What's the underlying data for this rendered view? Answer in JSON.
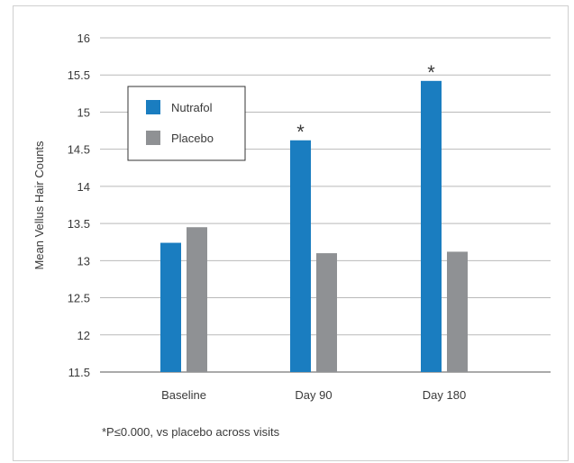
{
  "chart_data": {
    "type": "bar",
    "title": "",
    "xlabel": "",
    "ylabel": "Mean Vellus Hair Counts",
    "ylim": [
      11.5,
      16
    ],
    "yticks": [
      "11.5",
      "12",
      "12.5",
      "13",
      "13.5",
      "14",
      "14.5",
      "15",
      "15.5",
      "16"
    ],
    "grid": true,
    "legend_position": "top-left",
    "categories": [
      "Baseline",
      "Day  90",
      "Day  180"
    ],
    "series": [
      {
        "name": "Nutrafol",
        "color": "#1a7dc0",
        "values": [
          13.24,
          14.62,
          15.42
        ]
      },
      {
        "name": "Placebo",
        "color": "#8f9194",
        "values": [
          13.45,
          13.1,
          13.12
        ]
      }
    ],
    "significance": [
      {
        "category": "Day  90",
        "series": "Nutrafol",
        "marker": "*"
      },
      {
        "category": "Day  180",
        "series": "Nutrafol",
        "marker": "*"
      }
    ],
    "footnote": "*P≤0.000, vs placebo across visits"
  }
}
